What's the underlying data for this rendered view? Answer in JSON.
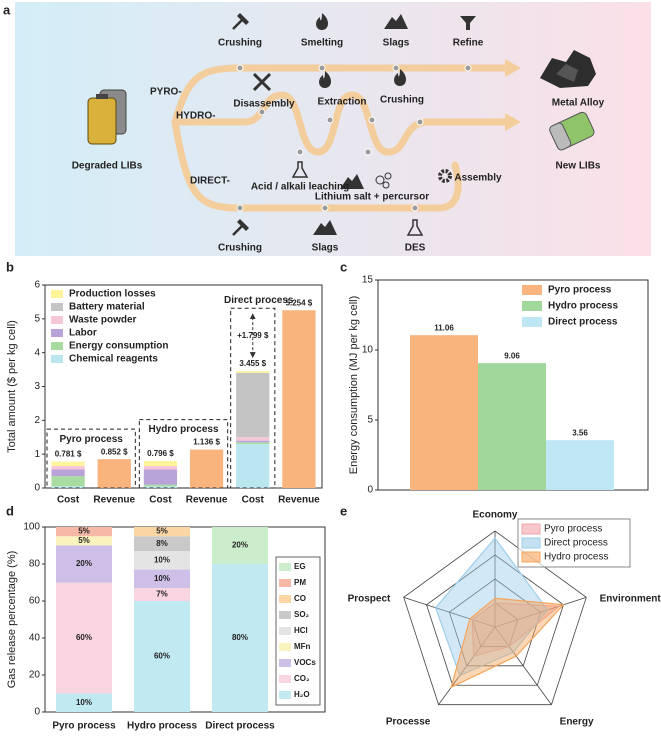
{
  "panel_a": {
    "label": "a",
    "routes": [
      "PYRO-",
      "HYDRO-",
      "DIRECT-"
    ],
    "source": "Degraded LIBs",
    "products": [
      "Metal Alloy",
      "New LIBs"
    ],
    "pyro_steps": [
      "Crushing",
      "Smelting",
      "Slags",
      "Refine"
    ],
    "hydro_steps": [
      "Disassembly",
      "Extraction",
      "Crushing",
      "Acid / alkali leaching",
      "Lithium salt + percursor",
      "Assembly"
    ],
    "direct_steps": [
      "Crushing",
      "Slags",
      "DES"
    ]
  },
  "chart_data": [
    {
      "type": "cost_revenue_bar",
      "panel_label": "b",
      "ylabel": "Total amount ($ per kg cell)",
      "groups": [
        "Pyro process",
        "Hydro process",
        "Direct process"
      ],
      "bar_labels": [
        "Cost",
        "Revenue"
      ],
      "ylim": [
        0,
        6
      ],
      "yticks": [
        0,
        1,
        2,
        3,
        4,
        5,
        6
      ],
      "series": [
        {
          "name": "Chemical reagents",
          "color": "#b9e6ef",
          "values": [
            0.05,
            0.05,
            1.3
          ]
        },
        {
          "name": "Energy consumption",
          "color": "#a8dba0",
          "values": [
            0.3,
            0.05,
            0.05
          ]
        },
        {
          "name": "Labor",
          "color": "#b8a3d9",
          "values": [
            0.2,
            0.45,
            0.05
          ]
        },
        {
          "name": "Waste powder",
          "color": "#f6c7d8",
          "values": [
            0.1,
            0.1,
            0.1
          ]
        },
        {
          "name": "Battery material",
          "color": "#c4c4c4",
          "values": [
            0,
            0,
            1.905
          ]
        },
        {
          "name": "Production losses",
          "color": "#fff49a",
          "values": [
            0.131,
            0.146,
            0.05
          ]
        }
      ],
      "totals": [
        0.781,
        0.796,
        3.455
      ],
      "total_labels": [
        "0.781 $",
        "0.796 $",
        "3.455 $"
      ],
      "revenue": {
        "color": "#f9b37d",
        "values": [
          0.852,
          1.136,
          5.254
        ],
        "value_labels": [
          "0.852 $",
          "1.136 $",
          "5.254 $"
        ]
      },
      "annotation": "+1.799 $"
    },
    {
      "type": "bar",
      "panel_label": "c",
      "ylabel": "Energy consumption (MJ per kg cell)",
      "categories": [
        "Pyro process",
        "Hydro process",
        "Direct process"
      ],
      "values": [
        11.06,
        9.06,
        3.56
      ],
      "colors": [
        "#f9b37d",
        "#9fd89a",
        "#bfe6f5"
      ],
      "ylim": [
        0,
        15
      ],
      "yticks": [
        0,
        5,
        10,
        15
      ]
    },
    {
      "type": "stacked_bar",
      "panel_label": "d",
      "ylabel": "Gas release percentage (%)",
      "categories": [
        "Pyro process",
        "Hydro process",
        "Direct process"
      ],
      "ylim": [
        0,
        100
      ],
      "yticks": [
        0,
        20,
        40,
        60,
        80,
        100
      ],
      "series": [
        {
          "name": "H₂O",
          "color": "#c0e9f1",
          "values": [
            10,
            60,
            80
          ],
          "value_labels": [
            "10%",
            "60%",
            "80%"
          ]
        },
        {
          "name": "CO₂",
          "color": "#f9d5e2",
          "values": [
            60,
            7,
            0
          ],
          "value_labels": [
            "60%",
            "7%",
            null
          ]
        },
        {
          "name": "VOCs",
          "color": "#cdbfe8",
          "values": [
            20,
            10,
            0
          ],
          "value_labels": [
            "20%",
            "10%",
            null
          ]
        },
        {
          "name": "MFn",
          "color": "#fbf3bd",
          "values": [
            5,
            0,
            0
          ],
          "value_labels": [
            "5%",
            null,
            null
          ]
        },
        {
          "name": "HCl",
          "color": "#e4e4e4",
          "values": [
            0,
            10,
            0
          ],
          "value_labels": [
            null,
            "10%",
            null
          ]
        },
        {
          "name": "SO₂",
          "color": "#c9c9c9",
          "values": [
            0,
            8,
            0
          ],
          "value_labels": [
            null,
            "8%",
            null
          ]
        },
        {
          "name": "CO",
          "color": "#fbd6a5",
          "values": [
            0,
            5,
            0
          ],
          "value_labels": [
            null,
            "5%",
            null
          ]
        },
        {
          "name": "PM",
          "color": "#f6b9a8",
          "values": [
            5,
            0,
            0
          ],
          "value_labels": [
            "5%",
            null,
            null
          ]
        },
        {
          "name": "EG",
          "color": "#cbedcb",
          "values": [
            0,
            0,
            20
          ],
          "value_labels": [
            null,
            null,
            "20%"
          ]
        }
      ]
    },
    {
      "type": "radar",
      "panel_label": "e",
      "axes": [
        "Economy",
        "Environment",
        "Energy",
        "Processe",
        "Prospect"
      ],
      "rlim": [
        0,
        4
      ],
      "rticks": [
        1,
        2,
        3,
        4
      ],
      "series": [
        {
          "name": "Pyro process",
          "color": "#f2a3a8",
          "values": [
            1,
            2.8,
            1,
            1.5,
            1
          ]
        },
        {
          "name": "Direct process",
          "color": "#9dcdea",
          "values": [
            3.7,
            2.3,
            1.3,
            2.5,
            2.6
          ]
        },
        {
          "name": "Hydro process",
          "color": "#f6a45a",
          "values": [
            1.2,
            3,
            1.5,
            3.1,
            1.1
          ]
        }
      ]
    }
  ]
}
